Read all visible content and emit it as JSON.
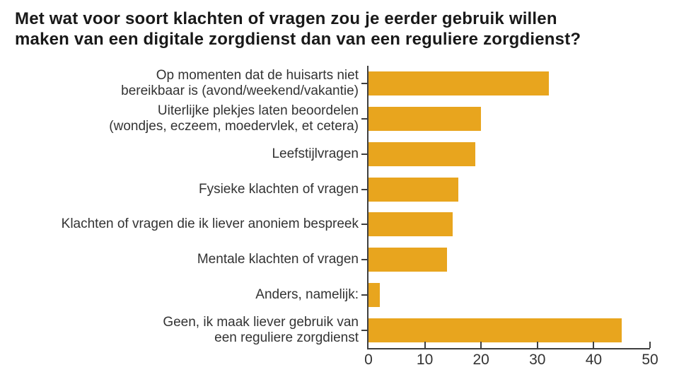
{
  "title_lines": [
    "Met wat voor soort klachten of vragen zou je eerder gebruik willen",
    "maken van een digitale zorgdienst dan van een reguliere zorgdienst?"
  ],
  "chart_data": {
    "type": "bar",
    "orientation": "horizontal",
    "title": "Met wat voor soort klachten of vragen zou je eerder gebruik willen maken van een digitale zorgdienst dan van een reguliere zorgdienst?",
    "categories": [
      "Op momenten dat de huisarts niet bereikbaar is (avond/weekend/vakantie)",
      "Uiterlijke plekjes laten beoordelen (wondjes, eczeem, moedervlek, et cetera)",
      "Leefstijlvragen",
      "Fysieke klachten of vragen",
      "Klachten of vragen die ik liever anoniem bespreek",
      "Mentale klachten of vragen",
      "Anders, namelijk:",
      "Geen, ik maak liever gebruik van een reguliere zorgdienst"
    ],
    "category_lines": [
      [
        "Op momenten dat de huisarts niet",
        "bereikbaar is (avond/weekend/vakantie)"
      ],
      [
        "Uiterlijke plekjes laten beoordelen",
        "(wondjes, eczeem, moedervlek, et cetera)"
      ],
      [
        "Leefstijlvragen"
      ],
      [
        "Fysieke klachten of vragen"
      ],
      [
        "Klachten of vragen die ik liever anoniem bespreek"
      ],
      [
        "Mentale klachten of vragen"
      ],
      [
        "Anders, namelijk:"
      ],
      [
        "Geen, ik maak liever gebruik van",
        "een reguliere zorgdienst"
      ]
    ],
    "values": [
      32,
      20,
      19,
      16,
      15,
      14,
      2,
      45
    ],
    "xlabel": "",
    "ylabel": "",
    "xlim": [
      0,
      50
    ],
    "xticks": [
      0,
      10,
      20,
      30,
      40,
      50
    ],
    "grid": false,
    "legend": false,
    "bar_color": "#E8A51E",
    "axis_color": "#3f3f3f",
    "label_color": "#333333",
    "title_color": "#191919",
    "background": "#ffffff"
  }
}
